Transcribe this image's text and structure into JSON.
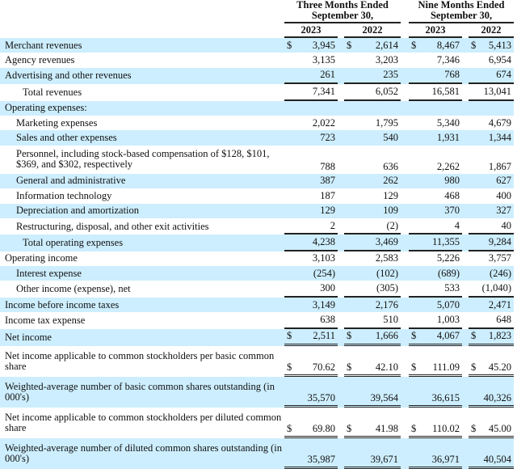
{
  "header": {
    "groups": [
      "Three Months Ended\nSeptember 30,",
      "Nine Months Ended\nSeptember 30,"
    ],
    "group_lines": [
      [
        "Three Months Ended",
        "September 30,"
      ],
      [
        "Nine Months Ended",
        "September 30,"
      ]
    ],
    "years": [
      "2023",
      "2022",
      "2023",
      "2022"
    ]
  },
  "colors": {
    "row_shade": "#cdeefe",
    "rule": "#222222"
  },
  "rows": [
    {
      "label": "Merchant revenues",
      "indent": 0,
      "dollar": true,
      "values": [
        "3,945",
        "2,614",
        "8,467",
        "5,413"
      ],
      "shade": true
    },
    {
      "label": "Agency revenues",
      "indent": 0,
      "values": [
        "3,135",
        "3,203",
        "7,346",
        "6,954"
      ]
    },
    {
      "label": "Advertising and other revenues",
      "indent": 0,
      "values": [
        "261",
        "235",
        "768",
        "674"
      ],
      "shade": true,
      "rule": "single"
    },
    {
      "label": "Total revenues",
      "indent": 2,
      "values": [
        "7,341",
        "6,052",
        "16,581",
        "13,041"
      ],
      "rule": "single"
    },
    {
      "label": "Operating expenses:",
      "indent": 0,
      "values": [
        "",
        "",
        "",
        ""
      ],
      "shade": true
    },
    {
      "label": "Marketing expenses",
      "indent": 1,
      "values": [
        "2,022",
        "1,795",
        "5,340",
        "4,679"
      ]
    },
    {
      "label": "Sales and other expenses",
      "indent": 1,
      "values": [
        "723",
        "540",
        "1,931",
        "1,344"
      ],
      "shade": true
    },
    {
      "label": "Personnel, including stock-based compensation of $128, $101, $369, and $302, respectively",
      "indent": 1,
      "values": [
        "788",
        "636",
        "2,262",
        "1,867"
      ],
      "tall": true
    },
    {
      "label": "General and administrative",
      "indent": 1,
      "values": [
        "387",
        "262",
        "980",
        "627"
      ],
      "shade": true
    },
    {
      "label": "Information technology",
      "indent": 1,
      "values": [
        "187",
        "129",
        "468",
        "400"
      ]
    },
    {
      "label": "Depreciation and amortization",
      "indent": 1,
      "values": [
        "129",
        "109",
        "370",
        "327"
      ],
      "shade": true
    },
    {
      "label": "Restructuring, disposal, and other exit activities",
      "indent": 1,
      "values": [
        "2",
        "(2)",
        "4",
        "40"
      ],
      "rule": "single"
    },
    {
      "label": "Total operating expenses",
      "indent": 2,
      "values": [
        "4,238",
        "3,469",
        "11,355",
        "9,284"
      ],
      "shade": true,
      "rule": "single"
    },
    {
      "label": "Operating income",
      "indent": 0,
      "values": [
        "3,103",
        "2,583",
        "5,226",
        "3,757"
      ]
    },
    {
      "label": "Interest expense",
      "indent": 1,
      "values": [
        "(254)",
        "(102)",
        "(689)",
        "(246)"
      ],
      "shade": true
    },
    {
      "label": "Other income (expense), net",
      "indent": 1,
      "values": [
        "300",
        "(305)",
        "533",
        "(1,040)"
      ],
      "rule": "single"
    },
    {
      "label": "Income before income taxes",
      "indent": 0,
      "values": [
        "3,149",
        "2,176",
        "5,070",
        "2,471"
      ],
      "shade": true
    },
    {
      "label": "Income tax expense",
      "indent": 0,
      "values": [
        "638",
        "510",
        "1,003",
        "648"
      ],
      "rule": "single"
    },
    {
      "label": "Net income",
      "indent": 0,
      "dollar": true,
      "values": [
        "2,511",
        "1,666",
        "4,067",
        "1,823"
      ],
      "shade": true,
      "rule": "double"
    },
    {
      "label": "Net income applicable to common stockholders per basic common share",
      "indent": 0,
      "dollar": true,
      "values": [
        "70.62",
        "42.10",
        "111.09",
        "45.20"
      ],
      "tall": true,
      "rule": "double"
    },
    {
      "label": "Weighted-average number of basic common shares outstanding (in 000's)",
      "indent": 0,
      "values": [
        "35,570",
        "39,564",
        "36,615",
        "40,326"
      ],
      "shade": true,
      "tall": true,
      "rule": "double"
    },
    {
      "label": "Net income applicable to common stockholders per diluted common share",
      "indent": 0,
      "dollar": true,
      "values": [
        "69.80",
        "41.98",
        "110.02",
        "45.00"
      ],
      "tall": true,
      "rule": "double"
    },
    {
      "label": "Weighted-average number of diluted common shares outstanding (in 000's)",
      "indent": 0,
      "values": [
        "35,987",
        "39,671",
        "36,971",
        "40,504"
      ],
      "shade": true,
      "tall": true,
      "rule": "double"
    }
  ],
  "currency_symbol": "$"
}
